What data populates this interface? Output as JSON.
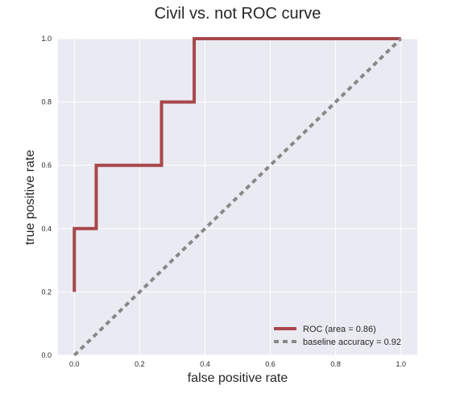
{
  "chart_data": {
    "type": "line",
    "title": "Civil vs. not ROC curve",
    "xlabel": "false positive rate",
    "ylabel": "true positive rate",
    "xlim": [
      -0.05,
      1.05
    ],
    "ylim": [
      0.0,
      1.0
    ],
    "xticks": [
      "0.0",
      "0.2",
      "0.4",
      "0.6",
      "0.8",
      "1.0"
    ],
    "yticks": [
      "0.0",
      "0.2",
      "0.4",
      "0.6",
      "0.8",
      "1.0"
    ],
    "grid": true,
    "legend_position": "lower-right",
    "series": [
      {
        "name": "ROC (area = 0.86)",
        "color": "#a8474a",
        "style": "solid",
        "x": [
          0.0,
          0.0,
          0.067,
          0.067,
          0.267,
          0.267,
          0.367,
          0.367,
          1.0
        ],
        "y": [
          0.2,
          0.4,
          0.4,
          0.6,
          0.6,
          0.8,
          0.8,
          1.0,
          1.0
        ]
      },
      {
        "name": "baseline accuracy = 0.92",
        "color": "#888888",
        "style": "dashed",
        "x": [
          0.0,
          1.0
        ],
        "y": [
          0.0,
          1.0
        ]
      }
    ]
  },
  "colors": {
    "plot_background": "#eaeaf2",
    "grid": "#ffffff",
    "text": "#262626"
  }
}
